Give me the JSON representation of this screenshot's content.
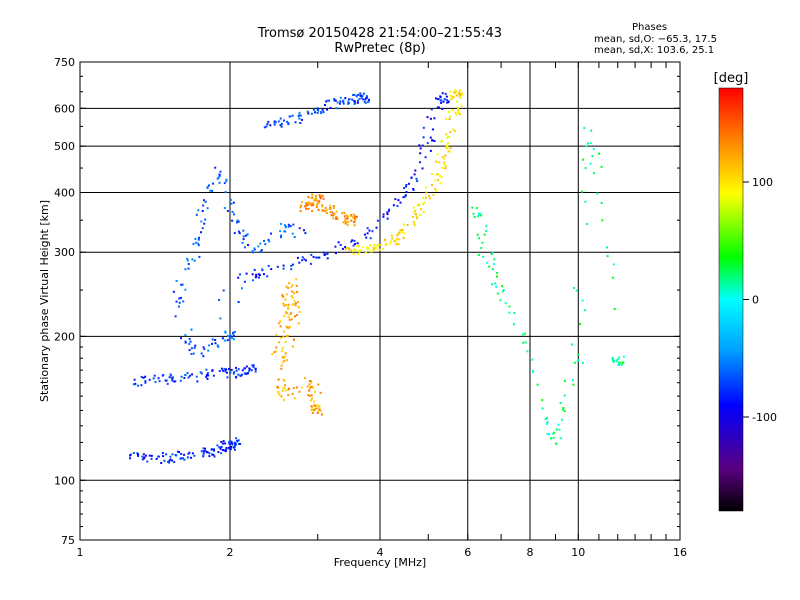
{
  "title": {
    "line1": "Tromsø 20150428 21:54:00–21:55:43",
    "line2": "RwPretec (8p)"
  },
  "phases": {
    "heading": "Phases",
    "line_o": "mean, sd,O: −65.3, 17.5",
    "line_x": "mean, sd,X: 103.6, 25.1"
  },
  "chart_data": {
    "type": "scatter",
    "xlabel": "Frequency [MHz]",
    "ylabel": "Stationary phase Virtual Height [km]",
    "xscale": "log2",
    "yscale": "log",
    "xlim": [
      1,
      16
    ],
    "ylim": [
      75,
      750
    ],
    "xticks": [
      1,
      2,
      4,
      6,
      8,
      10,
      16
    ],
    "xtick_labels": [
      "1",
      "2",
      "4",
      "6",
      "8",
      "10",
      "16"
    ],
    "xgrid": [
      2,
      4,
      6,
      8,
      10
    ],
    "yticks": [
      75,
      100,
      200,
      300,
      400,
      500,
      600,
      750
    ],
    "ytick_labels": [
      "75",
      "100",
      "200",
      "300",
      "400",
      "500",
      "600",
      "750"
    ],
    "ygrid": [
      100,
      200,
      300,
      400,
      500,
      600
    ],
    "grid": true,
    "colorbar": {
      "label": "[deg]",
      "range": [
        -180,
        180
      ],
      "ticks": [
        100,
        0,
        -100
      ],
      "tick_labels": [
        "100",
        "0",
        "-100"
      ],
      "colormap": "rainbow"
    },
    "traces": [
      {
        "name_hint": "o-trace E-layer",
        "phase": -80,
        "pts": [
          [
            1.25,
            112
          ],
          [
            1.4,
            111
          ],
          [
            1.55,
            112
          ],
          [
            1.7,
            113
          ],
          [
            1.85,
            115
          ],
          [
            1.95,
            117
          ],
          [
            2.05,
            120
          ]
        ]
      },
      {
        "name_hint": "o-trace Es band 160",
        "phase": -75,
        "pts": [
          [
            1.3,
            160
          ],
          [
            1.45,
            162
          ],
          [
            1.6,
            164
          ],
          [
            1.8,
            166
          ],
          [
            2.0,
            168
          ],
          [
            2.2,
            171
          ]
        ]
      },
      {
        "name_hint": "o-trace F-layer lower",
        "phase": -85,
        "pts": [
          [
            2.1,
            265
          ],
          [
            2.3,
            270
          ],
          [
            2.6,
            280
          ],
          [
            2.9,
            290
          ],
          [
            3.2,
            300
          ],
          [
            3.6,
            318
          ],
          [
            4.0,
            345
          ],
          [
            4.3,
            375
          ],
          [
            4.6,
            410
          ],
          [
            4.8,
            450
          ],
          [
            5.0,
            520
          ],
          [
            5.2,
            600
          ],
          [
            5.35,
            630
          ]
        ]
      },
      {
        "name_hint": "o-trace F-layer upper",
        "phase": -70,
        "pts": [
          [
            2.3,
            540
          ],
          [
            2.6,
            560
          ],
          [
            2.9,
            590
          ],
          [
            3.2,
            610
          ],
          [
            3.5,
            625
          ],
          [
            3.7,
            630
          ]
        ]
      },
      {
        "name_hint": "spread-F cloud",
        "phase": -65,
        "pts": [
          [
            1.55,
            220
          ],
          [
            1.6,
            260
          ],
          [
            1.7,
            300
          ],
          [
            1.75,
            350
          ],
          [
            1.8,
            400
          ],
          [
            1.9,
            450
          ],
          [
            2.0,
            380
          ],
          [
            2.1,
            330
          ],
          [
            2.2,
            300
          ],
          [
            2.4,
            320
          ],
          [
            2.6,
            340
          ],
          [
            2.8,
            330
          ],
          [
            1.6,
            200
          ],
          [
            1.7,
            185
          ],
          [
            1.85,
            190
          ],
          [
            2.0,
            200
          ]
        ]
      },
      {
        "name_hint": "x-trace F-layer",
        "phase": 100,
        "pts": [
          [
            3.4,
            305
          ],
          [
            3.7,
            300
          ],
          [
            4.0,
            305
          ],
          [
            4.3,
            320
          ],
          [
            4.6,
            345
          ],
          [
            4.9,
            380
          ],
          [
            5.2,
            430
          ],
          [
            5.45,
            500
          ],
          [
            5.6,
            570
          ],
          [
            5.7,
            640
          ]
        ]
      },
      {
        "name_hint": "x-trace spread patch",
        "phase": 120,
        "pts": [
          [
            2.5,
            180
          ],
          [
            2.55,
            200
          ],
          [
            2.6,
            230
          ],
          [
            2.65,
            260
          ],
          [
            2.7,
            220
          ],
          [
            2.5,
            160
          ],
          [
            2.6,
            150
          ],
          [
            2.9,
            160
          ],
          [
            3.0,
            140
          ]
        ]
      },
      {
        "name_hint": "x-trace cusp",
        "phase": 130,
        "pts": [
          [
            2.8,
            370
          ],
          [
            2.9,
            380
          ],
          [
            3.0,
            390
          ],
          [
            3.1,
            375
          ],
          [
            3.3,
            360
          ],
          [
            3.5,
            350
          ]
        ]
      },
      {
        "name_hint": "sparse high frequency",
        "phase": 20,
        "pts": [
          [
            6.2,
            380
          ],
          [
            6.5,
            300
          ],
          [
            7.0,
            250
          ],
          [
            8.2,
            160
          ],
          [
            9.0,
            120
          ],
          [
            10.0,
            180
          ],
          [
            10.5,
            560
          ],
          [
            12.0,
            178
          ]
        ]
      }
    ]
  }
}
